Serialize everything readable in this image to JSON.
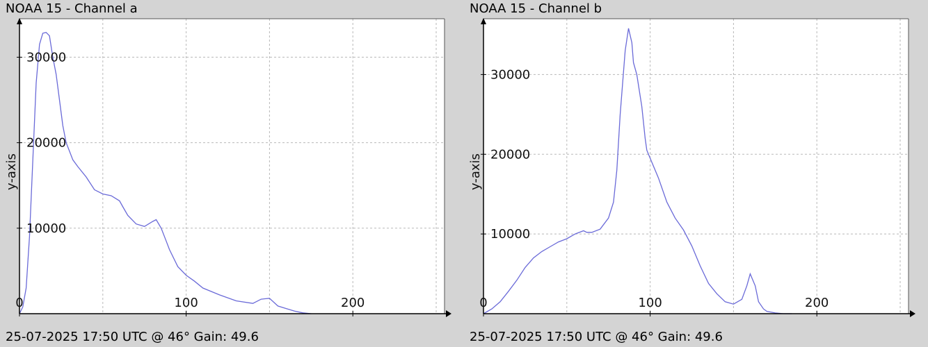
{
  "chart_data": [
    {
      "type": "line",
      "title": "NOAA 15 - Channel a",
      "footer": "25-07-2025 17:50 UTC @ 46° Gain: 49.6",
      "xlabel": "",
      "ylabel": "y-axis",
      "xlim": [
        0,
        255
      ],
      "ylim": [
        0,
        34500
      ],
      "x_ticks": [
        0,
        100,
        200
      ],
      "x_tick_labels": [
        "0",
        "100",
        "200"
      ],
      "y_ticks": [
        10000,
        20000,
        30000
      ],
      "y_tick_labels": [
        "10000",
        "20000",
        "30000"
      ],
      "grid": true,
      "line_color": "#6a6ad8",
      "series": [
        {
          "x": [
            0,
            2,
            4,
            6,
            8,
            10,
            12,
            14,
            16,
            18,
            20,
            22,
            24,
            26,
            28,
            30,
            32,
            35,
            40,
            45,
            50,
            55,
            60,
            62,
            65,
            70,
            75,
            80,
            82,
            85,
            88,
            90,
            95,
            100,
            105,
            110,
            120,
            130,
            140,
            145,
            150,
            155,
            160,
            165,
            170,
            175
          ],
          "y": [
            0,
            800,
            3000,
            9000,
            18000,
            27000,
            31500,
            32800,
            32900,
            32500,
            30000,
            28000,
            25000,
            22000,
            20000,
            19000,
            18000,
            17200,
            16000,
            14500,
            14000,
            13800,
            13200,
            12500,
            11500,
            10500,
            10200,
            10800,
            11000,
            10000,
            8500,
            7500,
            5500,
            4500,
            3800,
            3000,
            2200,
            1500,
            1200,
            1700,
            1800,
            900,
            600,
            300,
            100,
            0
          ]
        }
      ]
    },
    {
      "type": "line",
      "title": "NOAA 15 - Channel b",
      "footer": "25-07-2025 17:50 UTC @ 46° Gain: 49.6",
      "xlabel": "",
      "ylabel": "y-axis",
      "xlim": [
        0,
        255
      ],
      "ylim": [
        0,
        37000
      ],
      "x_ticks": [
        0,
        100,
        200
      ],
      "x_tick_labels": [
        "0",
        "100",
        "200"
      ],
      "y_ticks": [
        10000,
        20000,
        30000
      ],
      "y_tick_labels": [
        "10000",
        "20000",
        "30000"
      ],
      "grid": true,
      "line_color": "#6a6ad8",
      "series": [
        {
          "x": [
            0,
            5,
            10,
            15,
            20,
            25,
            30,
            35,
            40,
            45,
            50,
            55,
            60,
            62,
            65,
            70,
            75,
            78,
            80,
            82,
            85,
            87,
            89,
            90,
            92,
            95,
            97,
            98,
            100,
            105,
            110,
            115,
            120,
            125,
            130,
            135,
            140,
            145,
            150,
            155,
            158,
            160,
            163,
            165,
            168,
            170,
            175,
            180,
            185
          ],
          "y": [
            0,
            600,
            1500,
            2800,
            4200,
            5800,
            7000,
            7800,
            8400,
            9000,
            9400,
            10000,
            10400,
            10200,
            10200,
            10600,
            12000,
            14000,
            18000,
            25000,
            33000,
            35800,
            34000,
            31500,
            30000,
            26000,
            22000,
            20500,
            19500,
            17000,
            14000,
            12000,
            10500,
            8500,
            6000,
            3800,
            2500,
            1500,
            1200,
            1800,
            3500,
            5000,
            3500,
            1500,
            600,
            300,
            100,
            0,
            0
          ]
        }
      ]
    }
  ]
}
